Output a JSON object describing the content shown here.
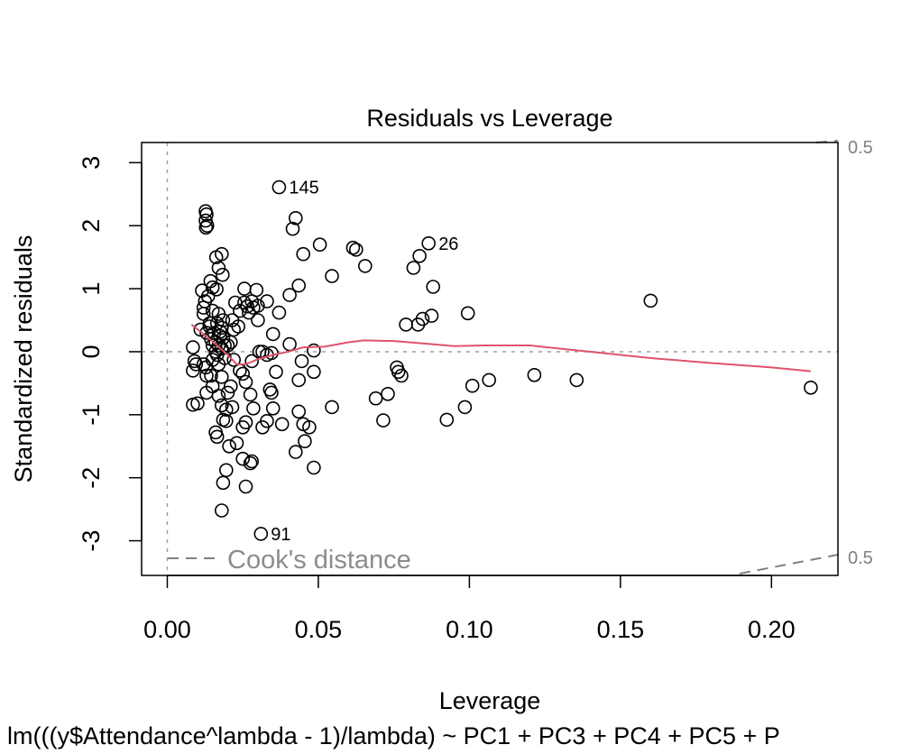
{
  "chart_data": {
    "type": "scatter",
    "title": "Residuals vs Leverage",
    "xlabel": "Leverage",
    "ylabel": "Standardized residuals",
    "subtitle": "lm(((y$Attendance^lambda - 1)/lambda) ~ PC1 + PC3 + PC4 + PC5 + P",
    "xlim": [
      -0.0085,
      0.222
    ],
    "ylim": [
      -3.55,
      3.32
    ],
    "xticks": [
      0.0,
      0.05,
      0.1,
      0.15,
      0.2
    ],
    "xtick_labels": [
      "0.00",
      "0.05",
      "0.10",
      "0.15",
      "0.20"
    ],
    "yticks": [
      -3,
      -2,
      -1,
      0,
      1,
      2,
      3
    ],
    "ytick_labels": [
      "-3",
      "-2",
      "-1",
      "0",
      "1",
      "2",
      "3"
    ],
    "grid": false,
    "legend": {
      "label": "Cook's distance",
      "position": "bottom-left"
    },
    "cooks_contour_labels": [
      "0.5",
      "0.5"
    ],
    "point_labels": [
      {
        "text": "145",
        "x": 0.037,
        "y": 2.61
      },
      {
        "text": "26",
        "x": 0.0865,
        "y": 1.72
      },
      {
        "text": "91",
        "x": 0.031,
        "y": -2.89
      }
    ],
    "colors": {
      "points": "#000000",
      "smoother": "#DF536B",
      "reference": "#9e9e9e",
      "cooks": "#808080"
    },
    "points": [
      [
        0.0127,
        2.23
      ],
      [
        0.013,
        2.18
      ],
      [
        0.0127,
        2.08
      ],
      [
        0.0132,
        2.0
      ],
      [
        0.0128,
        1.97
      ],
      [
        0.018,
        1.55
      ],
      [
        0.0162,
        1.5
      ],
      [
        0.017,
        1.33
      ],
      [
        0.0183,
        1.22
      ],
      [
        0.0143,
        1.12
      ],
      [
        0.0115,
        0.97
      ],
      [
        0.015,
        1.02
      ],
      [
        0.0163,
        0.99
      ],
      [
        0.0135,
        0.88
      ],
      [
        0.0125,
        0.8
      ],
      [
        0.012,
        0.7
      ],
      [
        0.012,
        0.6
      ],
      [
        0.015,
        0.65
      ],
      [
        0.017,
        0.6
      ],
      [
        0.014,
        0.45
      ],
      [
        0.0165,
        0.45
      ],
      [
        0.0185,
        0.5
      ],
      [
        0.018,
        0.38
      ],
      [
        0.0155,
        0.3
      ],
      [
        0.0175,
        0.25
      ],
      [
        0.0185,
        0.22
      ],
      [
        0.019,
        0.1
      ],
      [
        0.017,
        0.1
      ],
      [
        0.015,
        0.1
      ],
      [
        0.013,
        0.3
      ],
      [
        0.011,
        0.35
      ],
      [
        0.0085,
        0.07
      ],
      [
        0.009,
        -0.15
      ],
      [
        0.0095,
        -0.2
      ],
      [
        0.012,
        -0.2
      ],
      [
        0.0085,
        -0.3
      ],
      [
        0.013,
        -0.38
      ],
      [
        0.0145,
        -0.38
      ],
      [
        0.0128,
        -0.25
      ],
      [
        0.015,
        -0.13
      ],
      [
        0.0165,
        -0.05
      ],
      [
        0.017,
        -0.2
      ],
      [
        0.02,
        0.1
      ],
      [
        0.021,
        0.15
      ],
      [
        0.022,
        0.35
      ],
      [
        0.0235,
        0.4
      ],
      [
        0.0215,
        0.5
      ],
      [
        0.024,
        0.65
      ],
      [
        0.0225,
        0.78
      ],
      [
        0.0255,
        0.78
      ],
      [
        0.0255,
        1.0
      ],
      [
        0.0295,
        0.98
      ],
      [
        0.028,
        0.8
      ],
      [
        0.0265,
        0.72
      ],
      [
        0.0285,
        0.7
      ],
      [
        0.027,
        0.62
      ],
      [
        0.03,
        0.73
      ],
      [
        0.033,
        0.8
      ],
      [
        0.03,
        0.5
      ],
      [
        0.0305,
        0.0
      ],
      [
        0.0315,
        0.0
      ],
      [
        0.033,
        -0.05
      ],
      [
        0.0345,
        -0.02
      ],
      [
        0.035,
        0.28
      ],
      [
        0.037,
        0.62
      ],
      [
        0.0405,
        0.9
      ],
      [
        0.0435,
        1.05
      ],
      [
        0.045,
        1.55
      ],
      [
        0.0415,
        1.95
      ],
      [
        0.0425,
        2.12
      ],
      [
        0.037,
        2.61
      ],
      [
        0.0505,
        1.7
      ],
      [
        0.0545,
        1.2
      ],
      [
        0.0615,
        1.65
      ],
      [
        0.0625,
        1.62
      ],
      [
        0.0655,
        1.36
      ],
      [
        0.0815,
        1.33
      ],
      [
        0.0835,
        1.52
      ],
      [
        0.0865,
        1.72
      ],
      [
        0.088,
        1.03
      ],
      [
        0.0875,
        0.57
      ],
      [
        0.0845,
        0.52
      ],
      [
        0.083,
        0.43
      ],
      [
        0.079,
        0.43
      ],
      [
        0.0995,
        0.61
      ],
      [
        0.16,
        0.81
      ],
      [
        0.0405,
        0.12
      ],
      [
        0.0485,
        0.02
      ],
      [
        0.0445,
        -0.15
      ],
      [
        0.0485,
        -0.32
      ],
      [
        0.0435,
        -0.45
      ],
      [
        0.036,
        -0.32
      ],
      [
        0.034,
        -0.6
      ],
      [
        0.0345,
        -0.65
      ],
      [
        0.035,
        -0.9
      ],
      [
        0.038,
        -1.15
      ],
      [
        0.033,
        -1.1
      ],
      [
        0.0315,
        -1.2
      ],
      [
        0.0435,
        -0.95
      ],
      [
        0.045,
        -1.15
      ],
      [
        0.047,
        -1.2
      ],
      [
        0.0455,
        -1.42
      ],
      [
        0.0425,
        -1.59
      ],
      [
        0.0485,
        -1.84
      ],
      [
        0.0545,
        -0.88
      ],
      [
        0.069,
        -0.74
      ],
      [
        0.073,
        -0.67
      ],
      [
        0.0715,
        -1.09
      ],
      [
        0.076,
        -0.25
      ],
      [
        0.0765,
        -0.32
      ],
      [
        0.0775,
        -0.38
      ],
      [
        0.0925,
        -1.08
      ],
      [
        0.0985,
        -0.88
      ],
      [
        0.101,
        -0.54
      ],
      [
        0.1065,
        -0.45
      ],
      [
        0.1215,
        -0.37
      ],
      [
        0.1355,
        -0.45
      ],
      [
        0.213,
        -0.57
      ],
      [
        0.01,
        -0.82
      ],
      [
        0.0085,
        -0.84
      ],
      [
        0.013,
        -0.65
      ],
      [
        0.015,
        -0.55
      ],
      [
        0.018,
        -0.4
      ],
      [
        0.017,
        -0.7
      ],
      [
        0.02,
        -0.65
      ],
      [
        0.018,
        -0.85
      ],
      [
        0.0195,
        -0.92
      ],
      [
        0.0215,
        -0.88
      ],
      [
        0.021,
        -0.55
      ],
      [
        0.024,
        -0.3
      ],
      [
        0.025,
        -0.35
      ],
      [
        0.026,
        -0.48
      ],
      [
        0.028,
        -0.15
      ],
      [
        0.0275,
        -0.68
      ],
      [
        0.0285,
        -0.9
      ],
      [
        0.026,
        -1.12
      ],
      [
        0.025,
        -1.2
      ],
      [
        0.0195,
        -1.1
      ],
      [
        0.0185,
        -1.08
      ],
      [
        0.0165,
        -1.35
      ],
      [
        0.016,
        -1.28
      ],
      [
        0.0205,
        -1.5
      ],
      [
        0.023,
        -1.45
      ],
      [
        0.025,
        -1.7
      ],
      [
        0.028,
        -1.74
      ],
      [
        0.0275,
        -1.77
      ],
      [
        0.0195,
        -1.88
      ],
      [
        0.0185,
        -2.08
      ],
      [
        0.026,
        -2.14
      ],
      [
        0.018,
        -2.52
      ],
      [
        0.031,
        -2.89
      ],
      [
        0.016,
        0.15
      ],
      [
        0.018,
        0.05
      ],
      [
        0.019,
        -0.1
      ],
      [
        0.022,
        -0.13
      ],
      [
        0.014,
        0.4
      ],
      [
        0.0175,
        0.32
      ],
      [
        0.0145,
        0.2
      ],
      [
        0.016,
        0.0
      ]
    ],
    "smoother": [
      [
        0.008,
        0.43
      ],
      [
        0.012,
        0.28
      ],
      [
        0.016,
        0.12
      ],
      [
        0.02,
        -0.05
      ],
      [
        0.023,
        -0.2
      ],
      [
        0.026,
        -0.2
      ],
      [
        0.03,
        -0.12
      ],
      [
        0.035,
        -0.05
      ],
      [
        0.04,
        0.0
      ],
      [
        0.045,
        0.07
      ],
      [
        0.052,
        0.08
      ],
      [
        0.06,
        0.15
      ],
      [
        0.065,
        0.18
      ],
      [
        0.075,
        0.17
      ],
      [
        0.085,
        0.13
      ],
      [
        0.095,
        0.09
      ],
      [
        0.105,
        0.1
      ],
      [
        0.12,
        0.1
      ],
      [
        0.14,
        0.0
      ],
      [
        0.16,
        -0.1
      ],
      [
        0.18,
        -0.18
      ],
      [
        0.2,
        -0.25
      ],
      [
        0.213,
        -0.31
      ]
    ]
  }
}
